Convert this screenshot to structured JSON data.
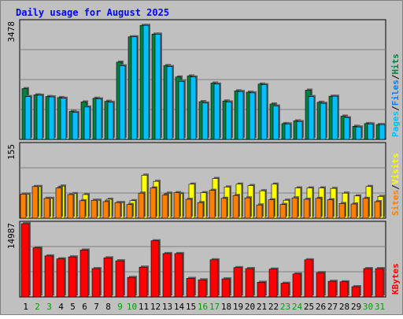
{
  "title": "Daily usage for August 2025",
  "colors": {
    "background": "#c0c0c0",
    "title": "#0000ff",
    "hits": "#008040",
    "files": "#00c0ff",
    "pages": "#00c0ff",
    "visits": "#ffff00",
    "sites": "#ff8000",
    "kbytes": "#ff0000",
    "weekend_label": "#00a000",
    "weekday_label": "#000000"
  },
  "panels": {
    "top": {
      "max_label": "3478",
      "legend": [
        "Pages",
        "/",
        "Files",
        "/",
        "Hits"
      ]
    },
    "middle": {
      "max_label": "155",
      "legend": [
        "Sites",
        "/",
        "Visits"
      ]
    },
    "bottom": {
      "max_label": "14987",
      "legend": [
        "KBytes"
      ]
    }
  },
  "chart_data": {
    "type": "bar",
    "title": "Daily usage for August 2025",
    "categories": [
      "1",
      "2",
      "3",
      "4",
      "5",
      "6",
      "7",
      "8",
      "9",
      "10",
      "11",
      "12",
      "13",
      "14",
      "15",
      "16",
      "17",
      "18",
      "19",
      "20",
      "21",
      "22",
      "23",
      "24",
      "25",
      "26",
      "27",
      "28",
      "29",
      "30",
      "31"
    ],
    "weekend_days": [
      "2",
      "3",
      "9",
      "10",
      "16",
      "17",
      "23",
      "24",
      "30",
      "31"
    ],
    "panels": [
      {
        "name": "top",
        "ylim": [
          0,
          3478
        ],
        "series": [
          {
            "name": "Hits",
            "values": [
              1505,
              1320,
              1270,
              1240,
              830,
              1110,
              1220,
              1130,
              2290,
              3040,
              3380,
              3120,
              2190,
              1850,
              1880,
              1120,
              1670,
              1140,
              1440,
              1400,
              1640,
              1050,
              470,
              550,
              1460,
              1100,
              1280,
              690,
              390,
              470,
              440
            ]
          },
          {
            "name": "Files",
            "values": [
              1270,
              1310,
              1260,
              1220,
              800,
              960,
              1200,
              1100,
              2180,
              3040,
              3380,
              3120,
              2160,
              1720,
              1850,
              1080,
              1640,
              1110,
              1420,
              1380,
              1620,
              990,
              460,
              530,
              1270,
              1070,
              1280,
              640,
              370,
              460,
              440
            ]
          },
          {
            "name": "Pages",
            "values": [
              0,
              0,
              0,
              0,
              0,
              0,
              0,
              0,
              0,
              0,
              0,
              0,
              0,
              0,
              0,
              0,
              0,
              0,
              0,
              0,
              0,
              0,
              0,
              0,
              0,
              0,
              0,
              0,
              0,
              0,
              0
            ]
          }
        ]
      },
      {
        "name": "middle",
        "ylim": [
          0,
          155
        ],
        "series": [
          {
            "name": "Visits",
            "values": [
              51,
              67,
              42,
              68,
              52,
              50,
              38,
              40,
              33,
              37,
              91,
              78,
              53,
              52,
              72,
              54,
              84,
              66,
              72,
              69,
              58,
              72,
              38,
              64,
              64,
              64,
              63,
              53,
              47,
              67,
              46
            ]
          },
          {
            "name": "Sites",
            "values": [
              51,
              67,
              42,
              64,
              50,
              37,
              38,
              35,
              33,
              29,
              53,
              64,
              49,
              54,
              40,
              33,
              59,
              42,
              48,
              43,
              28,
              39,
              29,
              43,
              40,
              42,
              39,
              31,
              30,
              42,
              35
            ]
          }
        ]
      },
      {
        "name": "bottom",
        "ylim": [
          0,
          14987
        ],
        "series": [
          {
            "name": "KBytes",
            "values": [
              14987,
              10060,
              8400,
              7800,
              8200,
              9600,
              5800,
              8000,
              7400,
              4000,
              6100,
              11500,
              8880,
              8880,
              3800,
              3500,
              7600,
              3700,
              6000,
              5800,
              3000,
              5700,
              2800,
              4700,
              7600,
              4980,
              3200,
              3100,
              2100,
              5800,
              5800
            ]
          }
        ]
      }
    ]
  }
}
